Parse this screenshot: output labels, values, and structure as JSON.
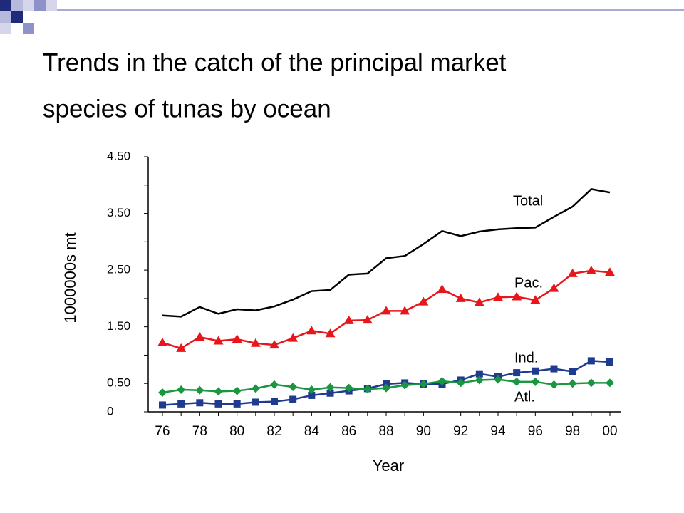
{
  "title_lines": [
    "Trends in the catch of the principal market",
    "species of tunas by ocean"
  ],
  "chart_data": {
    "type": "line",
    "ylabel": "1000000s mt",
    "xlabel": "Year",
    "categories": [
      "76",
      null,
      "78",
      null,
      "80",
      null,
      "82",
      null,
      "84",
      null,
      "86",
      null,
      "88",
      null,
      "90",
      null,
      "92",
      null,
      "94",
      null,
      "96",
      null,
      "98",
      null,
      "00"
    ],
    "ylim": [
      0,
      4.5
    ],
    "yticks": [
      {
        "value": 0,
        "label": "0"
      },
      {
        "value": 0.5,
        "label": "0.50"
      },
      {
        "value": 1.5,
        "label": "1.50"
      },
      {
        "value": 2.5,
        "label": "2.50"
      },
      {
        "value": 3.5,
        "label": "3.50"
      },
      {
        "value": 4.5,
        "label": "4.50"
      }
    ],
    "yminor_ticks": [
      1,
      2,
      3,
      4
    ],
    "series": [
      {
        "name": "Total",
        "color": "#000000",
        "marker": "none",
        "values": [
          1.7,
          1.68,
          1.85,
          1.73,
          1.81,
          1.79,
          1.86,
          1.98,
          2.13,
          2.15,
          2.42,
          2.44,
          2.71,
          2.75,
          2.96,
          3.19,
          3.1,
          3.18,
          3.22,
          3.24,
          3.25,
          3.44,
          3.62,
          3.93,
          3.87
        ]
      },
      {
        "name": "Pac.",
        "color": "#e8161b",
        "marker": "triangle",
        "values": [
          1.22,
          1.12,
          1.32,
          1.25,
          1.28,
          1.21,
          1.18,
          1.3,
          1.43,
          1.38,
          1.61,
          1.62,
          1.78,
          1.78,
          1.94,
          2.16,
          2.0,
          1.93,
          2.02,
          2.03,
          1.97,
          2.18,
          2.44,
          2.49,
          2.46
        ]
      },
      {
        "name": "Ind.",
        "color": "#1f3b8f",
        "marker": "square",
        "values": [
          0.12,
          0.14,
          0.16,
          0.14,
          0.14,
          0.17,
          0.18,
          0.22,
          0.29,
          0.33,
          0.37,
          0.41,
          0.49,
          0.51,
          0.49,
          0.49,
          0.56,
          0.67,
          0.62,
          0.69,
          0.72,
          0.76,
          0.71,
          0.9,
          0.88
        ]
      },
      {
        "name": "Atl.",
        "color": "#1a9641",
        "marker": "diamond",
        "values": [
          0.34,
          0.39,
          0.38,
          0.36,
          0.37,
          0.41,
          0.48,
          0.44,
          0.39,
          0.43,
          0.42,
          0.4,
          0.42,
          0.47,
          0.49,
          0.54,
          0.51,
          0.56,
          0.57,
          0.53,
          0.53,
          0.48,
          0.5,
          0.51,
          0.51
        ]
      }
    ]
  }
}
